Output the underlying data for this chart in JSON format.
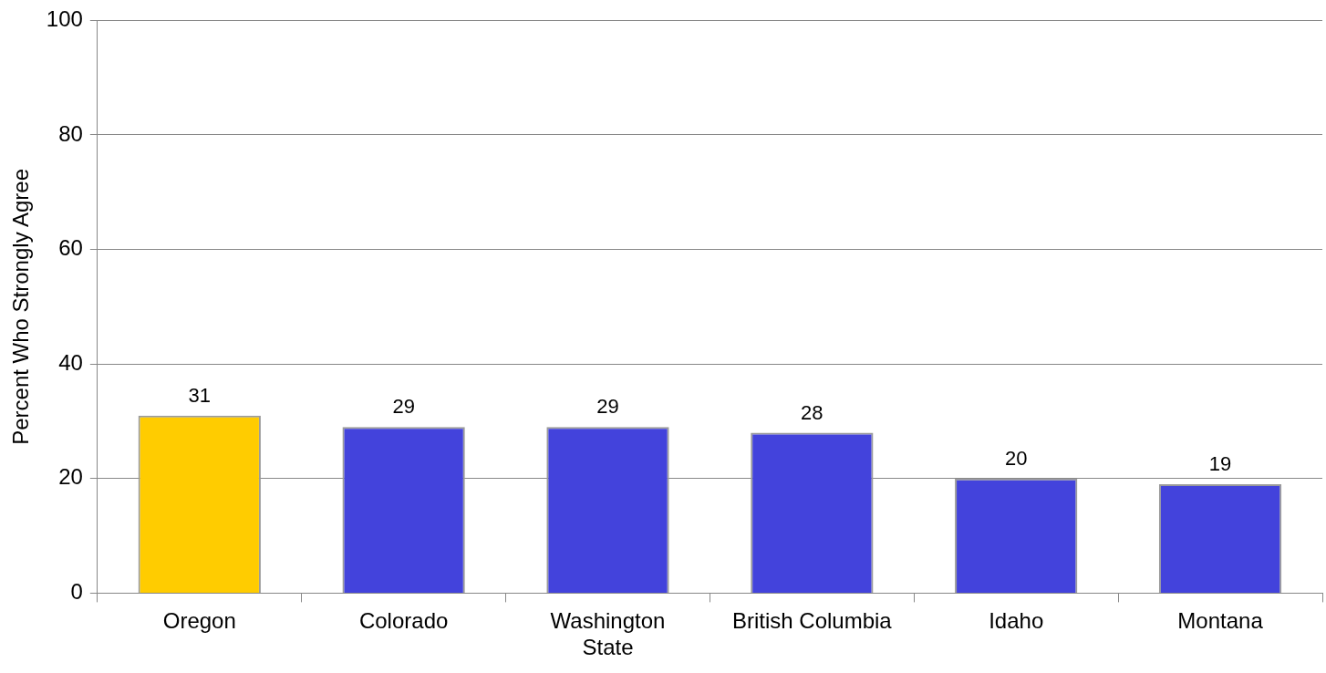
{
  "chart_data": {
    "type": "bar",
    "ylabel": "Percent Who Strongly Agree",
    "categories": [
      "Oregon",
      "Colorado",
      "Washington\nState",
      "British Columbia",
      "Idaho",
      "Montana"
    ],
    "values": [
      31,
      29,
      29,
      28,
      20,
      19
    ],
    "colors": [
      "#ffcc00",
      "#4343dc",
      "#4343dc",
      "#4343dc",
      "#4343dc",
      "#4343dc"
    ],
    "ylim": [
      0,
      100
    ],
    "yticks": [
      0,
      20,
      40,
      60,
      80,
      100
    ],
    "grid": "y",
    "data_labels": true,
    "legend": false
  }
}
